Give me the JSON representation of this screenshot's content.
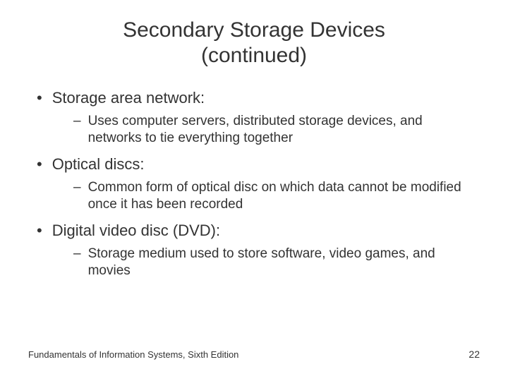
{
  "title_line1": "Secondary Storage Devices",
  "title_line2": "(continued)",
  "bullets": [
    {
      "label": "Storage area network:",
      "sub": "Uses computer servers, distributed storage devices, and networks to tie everything together"
    },
    {
      "label": "Optical discs:",
      "sub": "Common form of optical disc on which data cannot be modified once it has been recorded"
    },
    {
      "label": "Digital video disc (DVD):",
      "sub": "Storage medium used to store software, video games, and movies"
    }
  ],
  "footer_text": "Fundamentals of Information Systems, Sixth Edition",
  "page_number": "22",
  "colors": {
    "background": "#ffffff",
    "text": "#333333"
  },
  "typography": {
    "title_fontsize": 30,
    "bullet_fontsize": 22,
    "sub_fontsize": 19,
    "footer_fontsize": 13,
    "font_family": "Arial"
  }
}
